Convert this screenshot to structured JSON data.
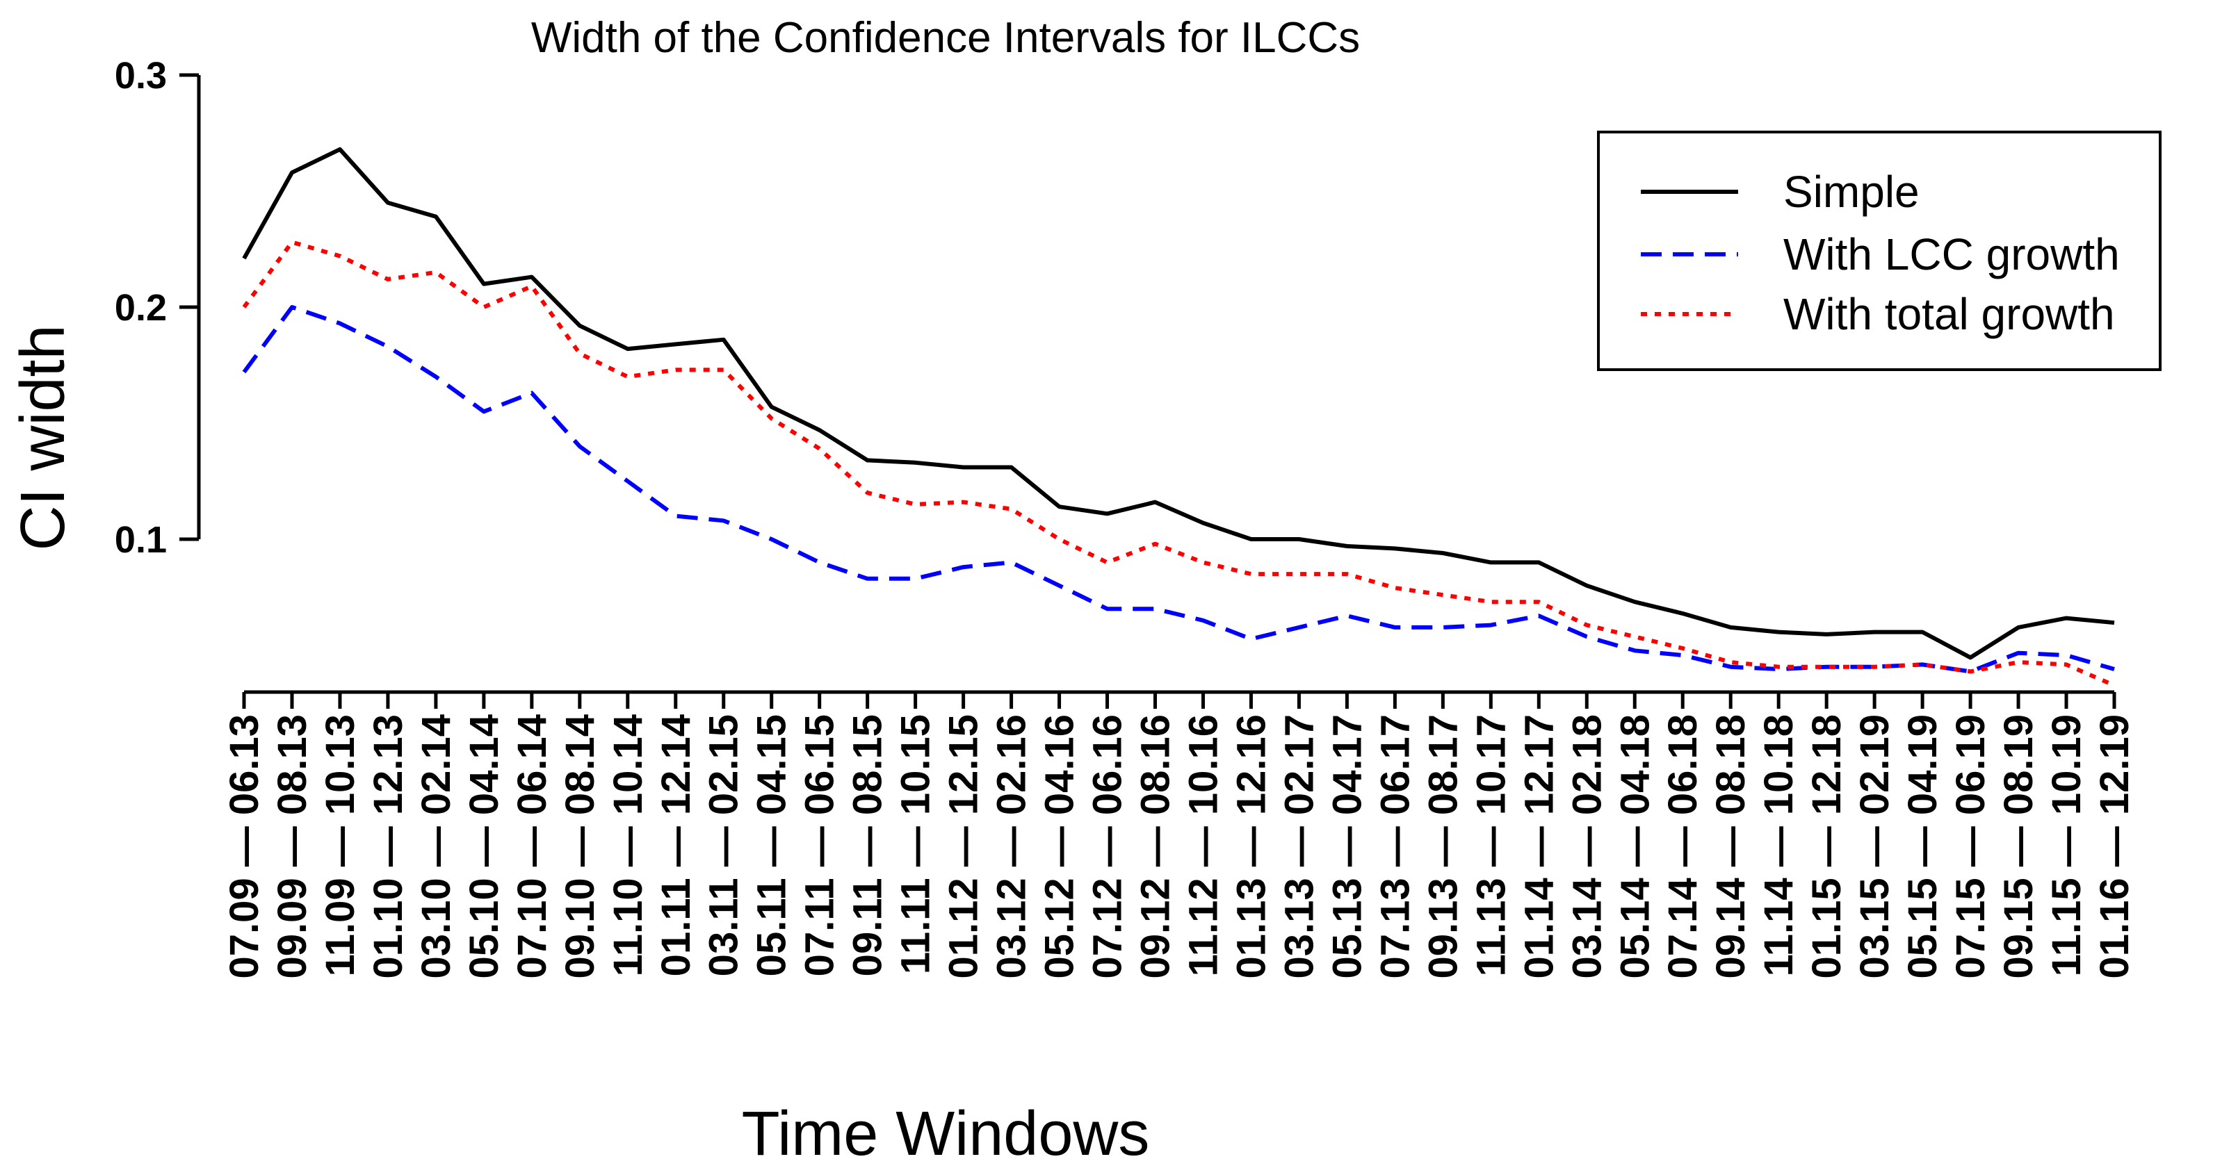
{
  "chart_data": {
    "type": "line",
    "title": "Width of the Confidence Intervals for ILCCs",
    "xlabel": "Time Windows",
    "ylabel": "CI width",
    "ylim": [
      0.035,
      0.3
    ],
    "yticks": [
      "0.1",
      "0.2",
      "0.3"
    ],
    "grid": false,
    "legend_position": "top-right",
    "x": [
      "07.09 — 06.13",
      "09.09 — 08.13",
      "11.09 — 10.13",
      "01.10 — 12.13",
      "03.10 — 02.14",
      "05.10 — 04.14",
      "07.10 — 06.14",
      "09.10 — 08.14",
      "11.10 — 10.14",
      "01.11 — 12.14",
      "03.11 — 02.15",
      "05.11 — 04.15",
      "07.11 — 06.15",
      "09.11 — 08.15",
      "11.11 — 10.15",
      "01.12 — 12.15",
      "03.12 — 02.16",
      "05.12 — 04.16",
      "07.12 — 06.16",
      "09.12 — 08.16",
      "11.12 — 10.16",
      "01.13 — 12.16",
      "03.13 — 02.17",
      "05.13 — 04.17",
      "07.13 — 06.17",
      "09.13 — 08.17",
      "11.13 — 10.17",
      "01.14 — 12.17",
      "03.14 — 02.18",
      "05.14 — 04.18",
      "07.14 — 06.18",
      "09.14 — 08.18",
      "11.14 — 10.18",
      "01.15 — 12.18",
      "03.15 — 02.19",
      "05.15 — 04.19",
      "07.15 — 06.19",
      "09.15 — 08.19",
      "11.15 — 10.19",
      "01.16 — 12.19"
    ],
    "series": [
      {
        "name": "Simple",
        "color": "#000000",
        "dash": "solid",
        "values": [
          0.221,
          0.258,
          0.268,
          0.245,
          0.239,
          0.21,
          0.213,
          0.192,
          0.182,
          0.184,
          0.186,
          0.157,
          0.147,
          0.134,
          0.133,
          0.131,
          0.131,
          0.114,
          0.111,
          0.116,
          0.107,
          0.1,
          0.1,
          0.097,
          0.096,
          0.094,
          0.09,
          0.09,
          0.08,
          0.073,
          0.068,
          0.062,
          0.06,
          0.059,
          0.06,
          0.06,
          0.049,
          0.062,
          0.066,
          0.064
        ]
      },
      {
        "name": "With LCC growth",
        "color": "#0000ff",
        "dash": "dashed",
        "values": [
          0.172,
          0.2,
          0.193,
          0.183,
          0.17,
          0.155,
          0.163,
          0.14,
          0.125,
          0.11,
          0.108,
          0.1,
          0.09,
          0.083,
          0.083,
          0.088,
          0.09,
          0.08,
          0.07,
          0.07,
          0.065,
          0.057,
          0.062,
          0.067,
          0.062,
          0.062,
          0.063,
          0.067,
          0.058,
          0.052,
          0.05,
          0.045,
          0.044,
          0.045,
          0.045,
          0.046,
          0.043,
          0.051,
          0.05,
          0.044
        ]
      },
      {
        "name": "With total growth",
        "color": "#ff0000",
        "dash": "dotted",
        "values": [
          0.2,
          0.228,
          0.222,
          0.212,
          0.215,
          0.2,
          0.209,
          0.18,
          0.17,
          0.173,
          0.173,
          0.152,
          0.139,
          0.12,
          0.115,
          0.116,
          0.113,
          0.1,
          0.09,
          0.098,
          0.09,
          0.085,
          0.085,
          0.085,
          0.079,
          0.076,
          0.073,
          0.073,
          0.063,
          0.058,
          0.053,
          0.047,
          0.045,
          0.045,
          0.045,
          0.046,
          0.043,
          0.047,
          0.046,
          0.037
        ]
      }
    ]
  }
}
